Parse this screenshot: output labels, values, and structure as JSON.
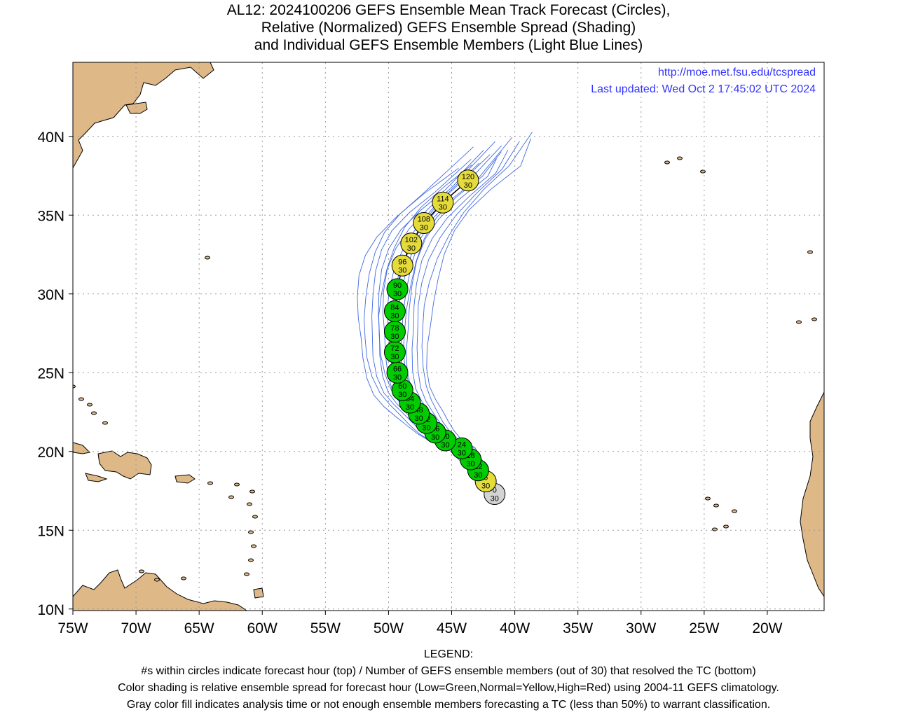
{
  "title": {
    "line1": "AL12: 2024100206 GEFS Ensemble Mean Track Forecast (Circles),",
    "line2": "Relative (Normalized) GEFS Ensemble Spread (Shading)",
    "line3": "and Individual GEFS Ensemble Members (Light Blue Lines)"
  },
  "source": {
    "url": "http://moe.met.fsu.edu/tcspread",
    "updated": "Last updated: Wed Oct 2 17:45:02 UTC 2024"
  },
  "axes": {
    "lon_labels": [
      "75W",
      "70W",
      "65W",
      "60W",
      "55W",
      "50W",
      "45W",
      "40W",
      "35W",
      "30W",
      "25W",
      "20W"
    ],
    "lon_values": [
      -75,
      -70,
      -65,
      -60,
      -55,
      -50,
      -45,
      -40,
      -35,
      -30,
      -25,
      -20
    ],
    "lat_labels": [
      "10N",
      "15N",
      "20N",
      "25N",
      "30N",
      "35N",
      "40N"
    ],
    "lat_values": [
      10,
      15,
      20,
      25,
      30,
      35,
      40
    ],
    "lon_range": [
      -75.0,
      -15.5
    ],
    "lat_range": [
      9.9,
      44.7
    ]
  },
  "colors": {
    "land": "#deb887",
    "ocean": "#ffffff",
    "member_tracks": "#4169e1",
    "spread_low": "#00cc00",
    "spread_normal": "#e5dc3c",
    "analysis": "#d3d3d3",
    "link_text": "#3333ff"
  },
  "track_points": [
    {
      "hour": "0",
      "members": "30",
      "lon": -41.6,
      "lat": 17.3,
      "spread": "gray"
    },
    {
      "hour": "6",
      "members": "30",
      "lon": -42.3,
      "lat": 18.1,
      "spread": "yellow"
    },
    {
      "hour": "12",
      "members": "30",
      "lon": -42.9,
      "lat": 18.8,
      "spread": "green"
    },
    {
      "hour": "18",
      "members": "30",
      "lon": -43.5,
      "lat": 19.5,
      "spread": "green"
    },
    {
      "hour": "24",
      "members": "30",
      "lon": -44.2,
      "lat": 20.2,
      "spread": "green"
    },
    {
      "hour": "30",
      "members": "30",
      "lon": -45.5,
      "lat": 20.7,
      "spread": "green"
    },
    {
      "hour": "36",
      "members": "30",
      "lon": -46.3,
      "lat": 21.2,
      "spread": "green"
    },
    {
      "hour": "42",
      "members": "30",
      "lon": -47.0,
      "lat": 21.8,
      "spread": "green"
    },
    {
      "hour": "48",
      "members": "30",
      "lon": -47.6,
      "lat": 22.4,
      "spread": "green"
    },
    {
      "hour": "54",
      "members": "30",
      "lon": -48.3,
      "lat": 23.1,
      "spread": "green"
    },
    {
      "hour": "60",
      "members": "30",
      "lon": -48.9,
      "lat": 23.9,
      "spread": "green"
    },
    {
      "hour": "66",
      "members": "30",
      "lon": -49.3,
      "lat": 25.0,
      "spread": "green"
    },
    {
      "hour": "72",
      "members": "30",
      "lon": -49.5,
      "lat": 26.3,
      "spread": "green"
    },
    {
      "hour": "78",
      "members": "30",
      "lon": -49.5,
      "lat": 27.6,
      "spread": "green"
    },
    {
      "hour": "84",
      "members": "30",
      "lon": -49.5,
      "lat": 28.9,
      "spread": "green"
    },
    {
      "hour": "90",
      "members": "30",
      "lon": -49.3,
      "lat": 30.3,
      "spread": "green"
    },
    {
      "hour": "96",
      "members": "30",
      "lon": -48.9,
      "lat": 31.8,
      "spread": "yellow"
    },
    {
      "hour": "102",
      "members": "30",
      "lon": -48.2,
      "lat": 33.2,
      "spread": "yellow"
    },
    {
      "hour": "108",
      "members": "30",
      "lon": -47.2,
      "lat": 34.5,
      "spread": "yellow"
    },
    {
      "hour": "114",
      "members": "30",
      "lon": -45.7,
      "lat": 35.8,
      "spread": "yellow"
    },
    {
      "hour": "120",
      "members": "30",
      "lon": -43.7,
      "lat": 37.2,
      "spread": "yellow"
    }
  ],
  "legend": {
    "heading": "LEGEND:",
    "line1": "#s within circles indicate forecast hour (top) / Number of GEFS ensemble members (out of 30) that resolved the TC (bottom)",
    "line2": "Color shading is relative ensemble spread for forecast hour (Low=Green,Normal=Yellow,High=Red) using 2004-11 GEFS climatology.",
    "line3": "Gray color fill indicates analysis time or not enough ensemble members forecasting a TC (less than 50%) to warrant classification."
  }
}
